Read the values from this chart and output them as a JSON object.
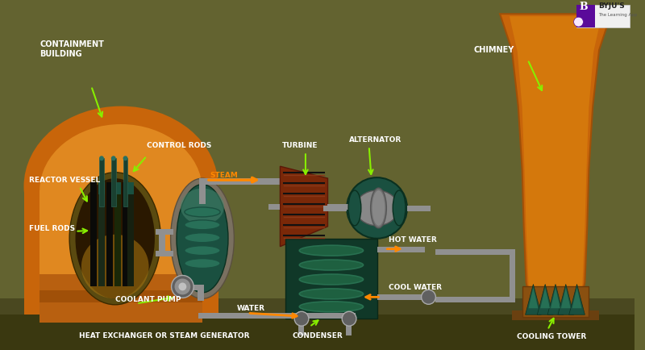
{
  "bg_color": "#636330",
  "label_color": "#ffffff",
  "arrow_color_green": "#88ee00",
  "arrow_color_orange": "#ff8800",
  "orange_body": "#c8650a",
  "orange_light": "#d4780c",
  "orange_inner": "#e08820",
  "dark_green": "#1a5040",
  "mid_green": "#267055",
  "bright_green": "#2a9060",
  "gray_pipe": "#909090",
  "gray_dark": "#606060",
  "dark_body": "#1a1a10",
  "reactor_inner": "#2a1a00",
  "rod_teal": "#1a5040",
  "turbine_red": "#7a2808",
  "turbine_light": "#c04030",
  "alt_green": "#1a5540",
  "alt_gray": "#888888",
  "cond_dark": "#103828",
  "cond_green": "#1e6040",
  "byju_purple": "#5a0a9a",
  "labels": {
    "containment_building": "CONTAINMENT\nBUILDING",
    "reactor_vessel": "REACTOR VESSEL",
    "control_rods": "CONTROL RODS",
    "fuel_rods": "FUEL RODS",
    "coolant_pump": "COOLANT PUMP",
    "steam": "STEAM",
    "heat_exchanger": "HEAT EXCHANGER OR STEAM GENERATOR",
    "turbine": "TURBINE",
    "alternator": "ALTERNATOR",
    "hot_water": "HOT WATER",
    "cool_water": "COOL WATER",
    "condenser": "CONDENSER",
    "water": "WATER",
    "chimney": "CHIMNEY",
    "cooling_tower": "COOLING TOWER"
  }
}
